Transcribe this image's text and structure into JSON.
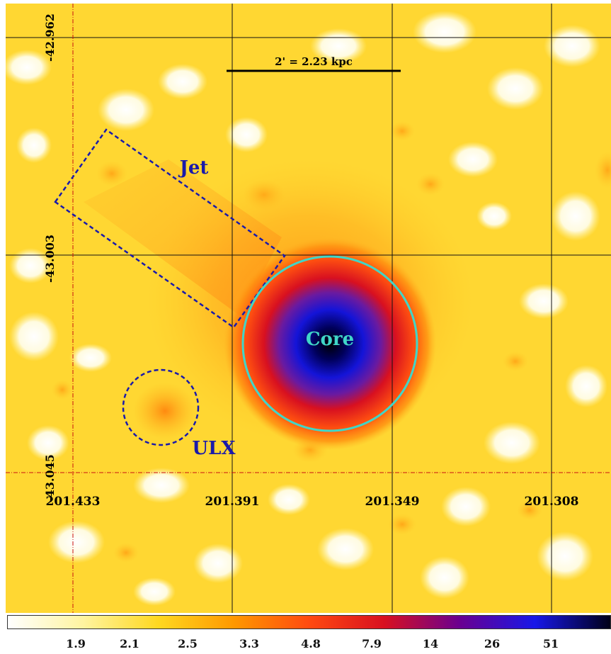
{
  "scale_bar": {
    "label": "2' = 2.23 kpc"
  },
  "regions": {
    "jet": {
      "label": "Jet",
      "color": "#1a1aaa"
    },
    "core": {
      "label": "Core",
      "color": "#40d6c8"
    },
    "ulx": {
      "label": "ULX",
      "color": "#1a1aaa"
    }
  },
  "axes": {
    "dec_ticks": [
      "-42.962",
      "-43.003",
      "-43.045"
    ],
    "ra_ticks": [
      "201.433",
      "201.391",
      "201.349",
      "201.308"
    ]
  },
  "colorbar": {
    "ticks": [
      "1.9",
      "2.1",
      "2.5",
      "3.3",
      "4.8",
      "7.9",
      "14",
      "26",
      "51"
    ],
    "colors": [
      "#ffffff",
      "#fff4a0",
      "#ffd820",
      "#ff9800",
      "#ff4a10",
      "#d81020",
      "#6a0090",
      "#1818e8",
      "#000018"
    ]
  }
}
